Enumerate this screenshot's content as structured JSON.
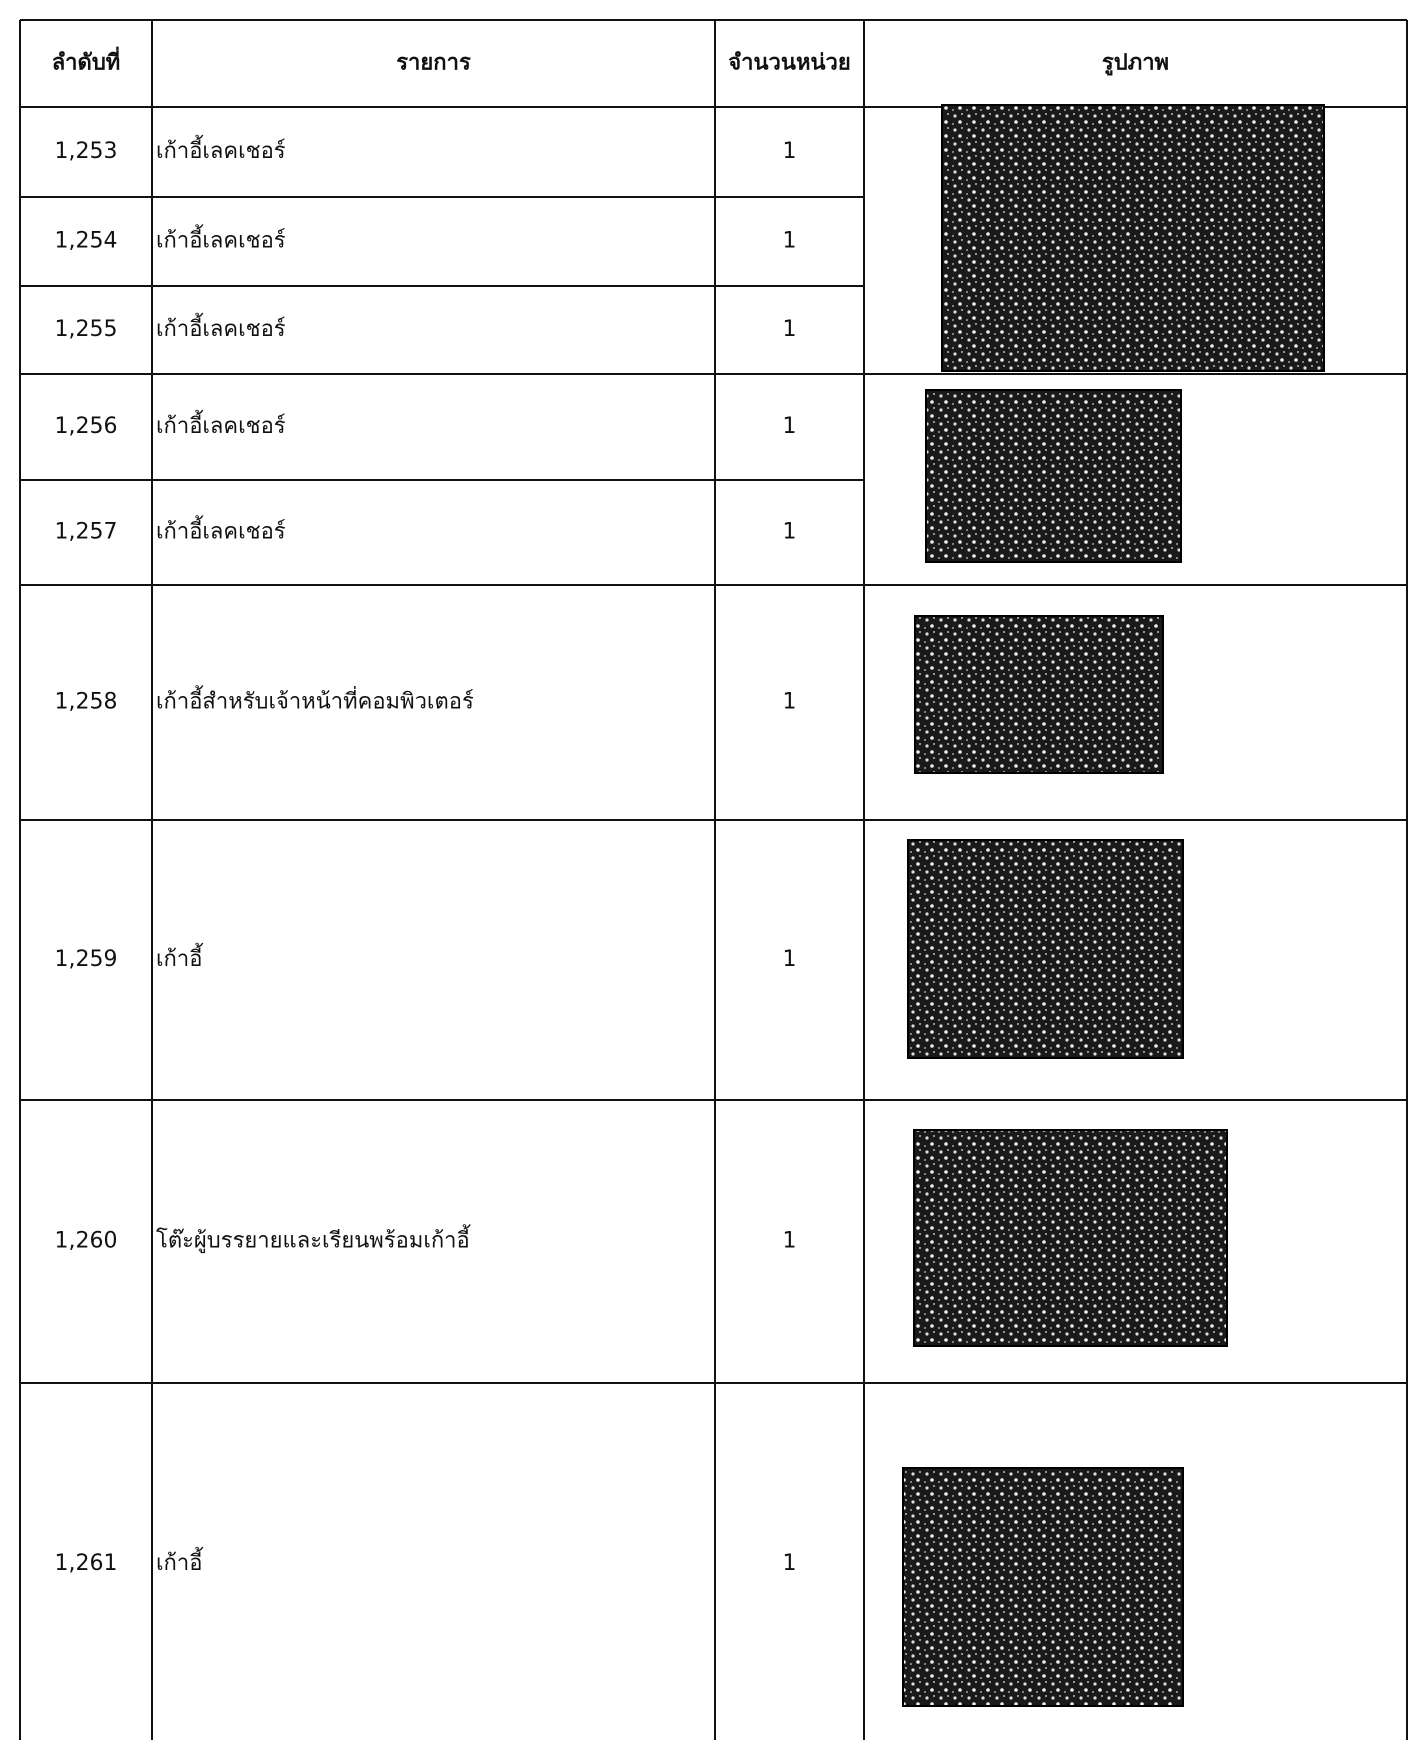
{
  "table": {
    "header": [
      "ลำดับที่",
      "รายการ",
      "จำนวนหน่วย",
      "รูปภาพ"
    ],
    "rows": [
      [
        "1,253",
        "เก้าอี้เลคเชอร์",
        "1"
      ],
      [
        "1,254",
        "เก้าอี้เลคเชอร์",
        "1"
      ],
      [
        "1,255",
        "เก้าอี้เลคเชอร์",
        "1"
      ],
      [
        "1,256",
        "เก้าอี้เลคเชอร์",
        "1"
      ],
      [
        "1,257",
        "เก้าอี้เลคเชอร์",
        "1"
      ],
      [
        "1,258",
        "เก้าอี้สำหรับเจ้าหน้าที่คอมพิวเตอร์",
        "1"
      ],
      [
        "1,259",
        "เก้าอี้",
        "1"
      ],
      [
        "1,260",
        "โต๊ะผู้บรรยายและเรียนพร้อมเก้าอี้",
        "1"
      ],
      [
        "1,261",
        "เก้าอี้",
        "1"
      ]
    ]
  }
}
